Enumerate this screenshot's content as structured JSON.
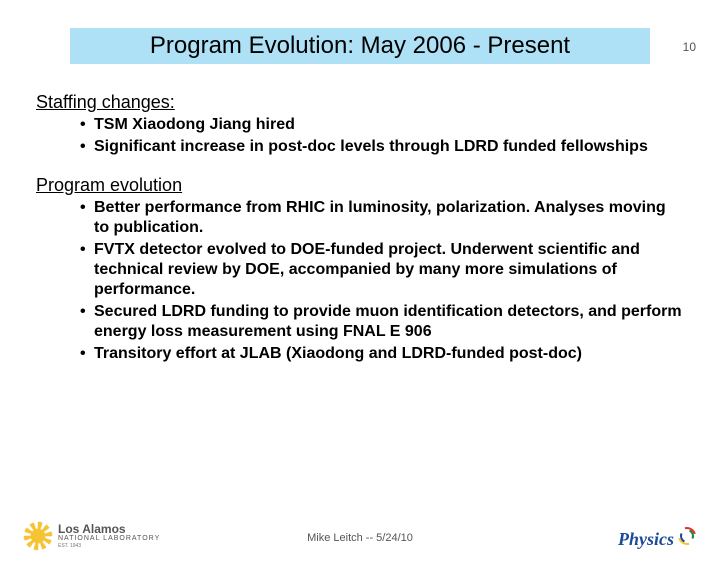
{
  "page_number": "10",
  "title": "Program Evolution: May 2006 - Present",
  "title_bg_color": "#aee1f6",
  "title_text_color": "#000000",
  "sections": [
    {
      "heading": "Staffing changes:",
      "bullets": [
        "TSM Xiaodong Jiang hired",
        "Significant increase in post-doc levels through LDRD funded fellowships"
      ]
    },
    {
      "heading": "Program evolution",
      "bullets": [
        "Better performance from RHIC in luminosity, polarization. Analyses moving to publication.",
        "FVTX detector evolved to DOE-funded project.  Underwent scientific and technical review by DOE, accompanied by many more simulations of performance.",
        "Secured LDRD funding to provide muon identification detectors, and perform energy loss measurement using FNAL E 906",
        "Transitory effort at JLAB (Xiaodong and LDRD-funded post-doc)"
      ]
    }
  ],
  "footer_text": "Mike Leitch -- 5/24/10",
  "lanl": {
    "line1": "Los Alamos",
    "line2": "NATIONAL LABORATORY",
    "line3": "EST. 1943"
  },
  "physics_label": "Physics"
}
